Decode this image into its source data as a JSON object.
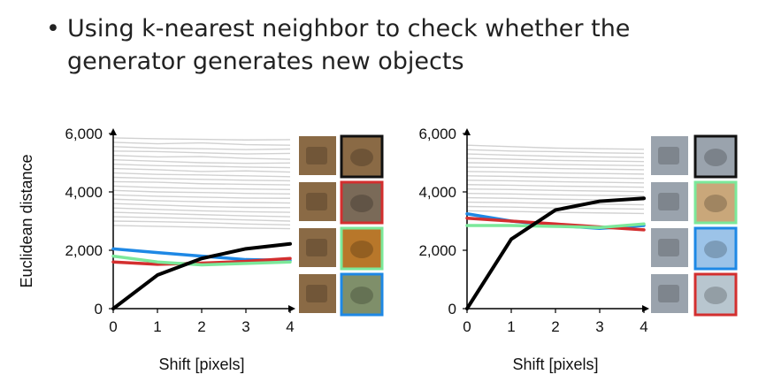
{
  "slide": {
    "bullet_char": "•",
    "bullet_text": "Using k-nearest neighbor to check whether the generator generates new objects"
  },
  "chart_data": [
    {
      "type": "line",
      "xlabel": "Shift [pixels]",
      "ylabel": "Euclidean distance",
      "xlim": [
        0,
        4
      ],
      "ylim": [
        0,
        6000
      ],
      "x": [
        0,
        1,
        2,
        3,
        4
      ],
      "xticks": [
        "0",
        "1",
        "2",
        "3",
        "4"
      ],
      "yticks": [
        "0",
        "2,000",
        "4,000",
        "6,000"
      ],
      "background_series_color": "#bdbdbd",
      "background_series": [
        [
          5850,
          5820,
          5800,
          5780,
          5790
        ],
        [
          5700,
          5650,
          5680,
          5620,
          5600
        ],
        [
          5550,
          5500,
          5480,
          5450,
          5470
        ],
        [
          5400,
          5380,
          5340,
          5300,
          5320
        ],
        [
          5250,
          5200,
          5210,
          5150,
          5120
        ],
        [
          5100,
          5050,
          5000,
          4980,
          4990
        ],
        [
          4950,
          4900,
          4880,
          4850,
          4830
        ],
        [
          4800,
          4760,
          4700,
          4720,
          4680
        ],
        [
          4650,
          4600,
          4580,
          4550,
          4520
        ],
        [
          4500,
          4460,
          4430,
          4400,
          4380
        ],
        [
          4350,
          4330,
          4280,
          4260,
          4240
        ],
        [
          4200,
          4150,
          4120,
          4100,
          4080
        ],
        [
          4050,
          4000,
          3980,
          3950,
          3930
        ],
        [
          3900,
          3850,
          3820,
          3790,
          3780
        ],
        [
          3750,
          3700,
          3660,
          3640,
          3620
        ],
        [
          3600,
          3550,
          3500,
          3470,
          3460
        ],
        [
          3450,
          3400,
          3350,
          3320,
          3300
        ],
        [
          3300,
          3260,
          3220,
          3180,
          3150
        ],
        [
          3150,
          3120,
          3080,
          3040,
          3000
        ],
        [
          3000,
          2980,
          2950,
          2900,
          2870
        ],
        [
          2850,
          2820,
          2790,
          2760,
          2740
        ]
      ],
      "series": [
        {
          "color": "#1e88e5",
          "values": [
            2050,
            1920,
            1800,
            1680,
            1650
          ],
          "width": 3.5
        },
        {
          "color": "#d32f2f",
          "values": [
            1600,
            1520,
            1560,
            1620,
            1720
          ],
          "width": 3.5
        },
        {
          "color": "#7be89a",
          "values": [
            1800,
            1600,
            1500,
            1550,
            1600
          ],
          "width": 3.5
        },
        {
          "color": "#000000",
          "values": [
            0,
            1150,
            1720,
            2050,
            2220
          ],
          "width": 4
        }
      ],
      "thumbnails": [
        {
          "query_color": "#8a6a45",
          "match_color": "#8a6a45",
          "border": "#111111"
        },
        {
          "query_color": "#8a6a45",
          "match_color": "#7a6a58",
          "border": "#d32f2f"
        },
        {
          "query_color": "#8a6a45",
          "match_color": "#b8772a",
          "border": "#7be89a"
        },
        {
          "query_color": "#8a6a45",
          "match_color": "#7f8f6a",
          "border": "#1e88e5"
        }
      ]
    },
    {
      "type": "line",
      "xlabel": "Shift [pixels]",
      "ylabel": "",
      "xlim": [
        0,
        4
      ],
      "ylim": [
        0,
        6000
      ],
      "x": [
        0,
        1,
        2,
        3,
        4
      ],
      "xticks": [
        "0",
        "1",
        "2",
        "3",
        "4"
      ],
      "yticks": [
        "0",
        "2,000",
        "4,000",
        "6,000"
      ],
      "background_series_color": "#bdbdbd",
      "background_series": [
        [
          5600,
          5550,
          5500,
          5480,
          5460
        ],
        [
          5450,
          5400,
          5380,
          5340,
          5320
        ],
        [
          5300,
          5260,
          5220,
          5200,
          5180
        ],
        [
          5150,
          5120,
          5080,
          5060,
          5040
        ],
        [
          5000,
          4980,
          4940,
          4920,
          4900
        ],
        [
          4850,
          4830,
          4800,
          4780,
          4760
        ],
        [
          4700,
          4680,
          4650,
          4630,
          4610
        ],
        [
          4550,
          4530,
          4500,
          4480,
          4460
        ],
        [
          4400,
          4380,
          4350,
          4330,
          4310
        ],
        [
          4250,
          4230,
          4200,
          4180,
          4160
        ],
        [
          4100,
          4080,
          4050,
          4030,
          4010
        ],
        [
          3950,
          3930,
          3900,
          3880,
          3860
        ],
        [
          3800,
          3780,
          3750,
          3730,
          3710
        ],
        [
          3650,
          3630,
          3600,
          3580,
          3560
        ],
        [
          3500,
          3480,
          3450,
          3430,
          3410
        ],
        [
          3350,
          3330,
          3300,
          3280,
          3260
        ]
      ],
      "series": [
        {
          "color": "#1e88e5",
          "values": [
            3250,
            3000,
            2850,
            2750,
            2850
          ],
          "width": 3.5
        },
        {
          "color": "#d32f2f",
          "values": [
            3100,
            3000,
            2900,
            2800,
            2700
          ],
          "width": 3.5
        },
        {
          "color": "#7be89a",
          "values": [
            2850,
            2850,
            2820,
            2780,
            2900
          ],
          "width": 3.5
        },
        {
          "color": "#000000",
          "values": [
            0,
            2380,
            3380,
            3680,
            3780
          ],
          "width": 4
        }
      ],
      "thumbnails": [
        {
          "query_color": "#9aa3ad",
          "match_color": "#9aa3ad",
          "border": "#111111"
        },
        {
          "query_color": "#9aa3ad",
          "match_color": "#c9a77a",
          "border": "#7be89a"
        },
        {
          "query_color": "#9aa3ad",
          "match_color": "#9cc3e8",
          "border": "#1e88e5"
        },
        {
          "query_color": "#9aa3ad",
          "match_color": "#b8c6cf",
          "border": "#d32f2f"
        }
      ]
    }
  ]
}
